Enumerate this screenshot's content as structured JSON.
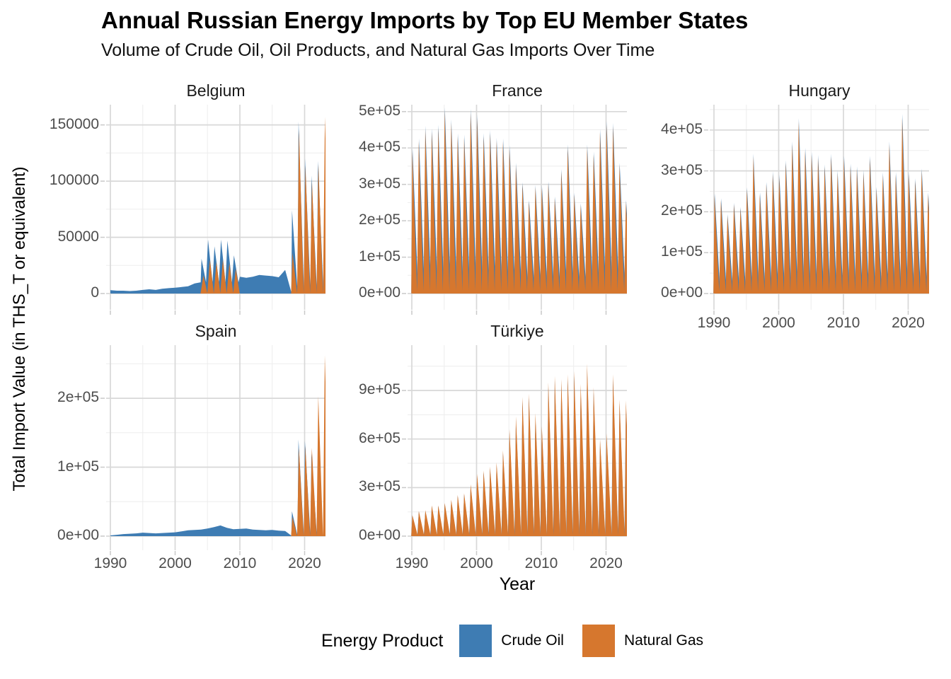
{
  "colors": {
    "crude_oil": "#3E7CB3",
    "natural_gas": "#D6772E",
    "grid_major": "#d8d8d8",
    "grid_minor": "#ededed",
    "tick_mark": "#c9c9c9",
    "axis_text": "#4d4d4d"
  },
  "chart_data": {
    "type": "area",
    "title": "Annual Russian Energy Imports by Top EU Member States",
    "subtitle": "Volume of Crude Oil, Oil Products, and Natural Gas Imports Over Time",
    "xlabel": "Year",
    "ylabel": "Total Import Value (in THS_T or equivalent)",
    "legend": {
      "title": "Energy Product",
      "position": "bottom",
      "entries": [
        {
          "label": "Crude Oil",
          "color": "#3E7CB3"
        },
        {
          "label": "Natural Gas",
          "color": "#D6772E"
        }
      ]
    },
    "grid": "major and minor, light gray on white",
    "years": [
      1990,
      1991,
      1992,
      1993,
      1994,
      1995,
      1996,
      1997,
      1998,
      1999,
      2000,
      2001,
      2002,
      2003,
      2004,
      2005,
      2006,
      2007,
      2008,
      2009,
      2010,
      2011,
      2012,
      2013,
      2014,
      2015,
      2016,
      2017,
      2018,
      2019,
      2020,
      2021,
      2022,
      2023
    ],
    "xlim": [
      1989.34,
      2023.23
    ],
    "x_major_ticks": [
      1990,
      2000,
      2010,
      2020
    ],
    "x_minor_ticks": [
      1995,
      2005,
      2015
    ],
    "facets": [
      {
        "name": "Belgium",
        "show_x_labels": false,
        "ylim": [
          -14472,
          168000
        ],
        "yticks": [
          {
            "value": 0,
            "label": "0"
          },
          {
            "value": 50000,
            "label": "50000"
          },
          {
            "value": 100000,
            "label": "100000"
          },
          {
            "value": 150000,
            "label": "150000"
          }
        ],
        "y_minor": [
          25000,
          75000,
          125000
        ],
        "series": {
          "crude_oil": [
            3000,
            2500,
            2500,
            2200,
            2500,
            3200,
            3800,
            3200,
            4200,
            4800,
            5200,
            5800,
            6500,
            9000,
            31000,
            48000,
            42000,
            48000,
            47000,
            34000,
            15000,
            14000,
            15000,
            16500,
            16000,
            15500,
            14500,
            21000,
            74000,
            153000,
            120000,
            105000,
            118000,
            10000
          ],
          "natural_gas": [
            0,
            0,
            0,
            0,
            0,
            0,
            0,
            0,
            0,
            0,
            0,
            0,
            0,
            0,
            16000,
            30000,
            28000,
            30000,
            27000,
            22000,
            0,
            0,
            0,
            0,
            0,
            0,
            0,
            0,
            36000,
            146000,
            114000,
            100000,
            115000,
            157000
          ]
        },
        "render": {
          "crude_oil": [
            {
              "style": "smooth",
              "from": 1990,
              "to": 2003
            },
            {
              "style": "spike",
              "from": 2004,
              "to": 2009,
              "base": 10000,
              "peakdx": 0.08,
              "falldx": 0.78
            },
            {
              "style": "smooth",
              "from": 2010,
              "to": 2017
            },
            {
              "style": "spike",
              "from": 2018,
              "to": 2023,
              "base": 1200,
              "peakdx": 0.06,
              "falldx": 0.92
            }
          ],
          "natural_gas": [
            {
              "style": "spike",
              "from": 2004,
              "to": 2009,
              "base": 300,
              "peakdx": 0.38,
              "falldx": 0.97
            },
            {
              "style": "spike",
              "from": 2018,
              "to": 2023,
              "base": 300,
              "peakdx": 0.14,
              "falldx": 0.85
            }
          ]
        }
      },
      {
        "name": "France",
        "show_x_labels": false,
        "ylim": [
          -44708,
          519000
        ],
        "yticks": [
          {
            "value": 0,
            "label": "0e+00"
          },
          {
            "value": 100000,
            "label": "1e+05"
          },
          {
            "value": 200000,
            "label": "2e+05"
          },
          {
            "value": 300000,
            "label": "3e+05"
          },
          {
            "value": 400000,
            "label": "4e+05"
          },
          {
            "value": 500000,
            "label": "5e+05"
          }
        ],
        "y_minor": [
          50000,
          150000,
          250000,
          350000,
          450000
        ],
        "series": {
          "crude_oil": [
            398000,
            426000,
            461000,
            454000,
            464000,
            512000,
            479000,
            441000,
            437000,
            508000,
            492000,
            441000,
            449000,
            428000,
            426000,
            408000,
            359000,
            306000,
            257000,
            298000,
            296000,
            308000,
            267000,
            342000,
            410000,
            277000,
            248000,
            410000,
            390000,
            452000,
            474000,
            469000,
            359000,
            257000
          ],
          "natural_gas": [
            390000,
            418000,
            452000,
            445000,
            455000,
            502000,
            470000,
            432000,
            428000,
            498000,
            482000,
            432000,
            440000,
            420000,
            418000,
            400000,
            352000,
            300000,
            252000,
            292000,
            290000,
            302000,
            262000,
            335000,
            402000,
            272000,
            243000,
            402000,
            382000,
            443000,
            465000,
            460000,
            352000,
            252000
          ]
        },
        "render": {
          "crude_oil": [
            {
              "style": "spike",
              "from": 1990,
              "to": 2023,
              "base": 9000,
              "peakdx": 0.1,
              "falldx": 0.97
            }
          ],
          "natural_gas": [
            {
              "style": "spike",
              "from": 1990,
              "to": 2023,
              "base": 8000,
              "peakdx": 0.07,
              "falldx": 0.8
            }
          ]
        }
      },
      {
        "name": "Hungary",
        "show_x_labels": true,
        "ylim": [
          -39797,
          462000
        ],
        "yticks": [
          {
            "value": 0,
            "label": "0e+00"
          },
          {
            "value": 100000,
            "label": "1e+05"
          },
          {
            "value": 200000,
            "label": "2e+05"
          },
          {
            "value": 300000,
            "label": "3e+05"
          },
          {
            "value": 400000,
            "label": "4e+05"
          }
        ],
        "y_minor": [
          50000,
          150000,
          250000,
          350000,
          450000
        ],
        "series": {
          "crude_oil": [
            245000,
            233000,
            194000,
            222000,
            212000,
            260000,
            342000,
            248000,
            273000,
            299000,
            291000,
            326000,
            372000,
            429000,
            357000,
            347000,
            339000,
            316000,
            342000,
            301000,
            337000,
            318000,
            311000,
            302000,
            337000,
            261000,
            296000,
            372000,
            297000,
            439000,
            297000,
            282000,
            306000,
            247000
          ],
          "natural_gas": [
            240000,
            228000,
            190000,
            218000,
            208000,
            255000,
            335000,
            243000,
            268000,
            293000,
            285000,
            320000,
            365000,
            421000,
            350000,
            340000,
            332000,
            310000,
            335000,
            295000,
            330000,
            312000,
            305000,
            296000,
            330000,
            256000,
            290000,
            365000,
            291000,
            430000,
            291000,
            276000,
            300000,
            242000
          ]
        },
        "render": {
          "crude_oil": [
            {
              "style": "spike",
              "from": 1990,
              "to": 2023,
              "base": 6000,
              "peakdx": 0.1,
              "falldx": 0.95
            }
          ],
          "natural_gas": [
            {
              "style": "spike",
              "from": 1990,
              "to": 2023,
              "base": 5000,
              "peakdx": 0.07,
              "falldx": 0.8
            }
          ]
        }
      },
      {
        "name": "Spain",
        "show_x_labels": true,
        "ylim": [
          -20519,
          277000
        ],
        "yticks": [
          {
            "value": 0,
            "label": "0e+00"
          },
          {
            "value": 100000,
            "label": "1e+05"
          },
          {
            "value": 200000,
            "label": "2e+05"
          }
        ],
        "y_minor": [
          50000,
          150000,
          250000
        ],
        "series": {
          "crude_oil": [
            1000,
            2000,
            3000,
            3500,
            4000,
            5000,
            4500,
            4000,
            4500,
            5000,
            5500,
            7000,
            8500,
            9000,
            9500,
            11000,
            13000,
            15500,
            12000,
            10000,
            10500,
            11000,
            9500,
            9000,
            8500,
            9000,
            8000,
            7500,
            36000,
            140000,
            138000,
            120000,
            15000,
            10000
          ],
          "natural_gas": [
            0,
            0,
            0,
            0,
            0,
            0,
            0,
            0,
            0,
            0,
            0,
            0,
            0,
            0,
            0,
            0,
            0,
            0,
            0,
            0,
            0,
            0,
            0,
            0,
            0,
            0,
            0,
            0,
            28000,
            129000,
            131000,
            128000,
            203000,
            262000
          ]
        },
        "render": {
          "crude_oil": [
            {
              "style": "smooth",
              "from": 1990,
              "to": 2017
            },
            {
              "style": "spike",
              "from": 2018,
              "to": 2023,
              "base": 800,
              "peakdx": 0.05,
              "falldx": 0.9
            }
          ],
          "natural_gas": [
            {
              "style": "spike",
              "from": 2018,
              "to": 2023,
              "base": 300,
              "peakdx": 0.12,
              "falldx": 0.85
            }
          ]
        }
      },
      {
        "name": "Türkiye",
        "show_x_labels": true,
        "ylim": [
          -87407,
          1180000
        ],
        "yticks": [
          {
            "value": 0,
            "label": "0e+00"
          },
          {
            "value": 300000,
            "label": "3e+05"
          },
          {
            "value": 600000,
            "label": "6e+05"
          },
          {
            "value": 900000,
            "label": "9e+05"
          }
        ],
        "y_minor": [
          150000,
          450000,
          750000,
          1050000
        ],
        "series": {
          "crude_oil": [
            126000,
            150000,
            155000,
            184000,
            184000,
            199000,
            218000,
            247000,
            257000,
            310000,
            373000,
            393000,
            417000,
            441000,
            514000,
            640000,
            718000,
            834000,
            854000,
            737000,
            660000,
            921000,
            960000,
            941000,
            970000,
            989000,
            912000,
            1033000,
            892000,
            582000,
            616000,
            970000,
            820000,
            813000
          ],
          "natural_gas": [
            130000,
            155000,
            160000,
            190000,
            190000,
            205000,
            225000,
            255000,
            265000,
            320000,
            385000,
            405000,
            430000,
            455000,
            530000,
            660000,
            740000,
            860000,
            880000,
            760000,
            680000,
            950000,
            990000,
            970000,
            1000000,
            1020000,
            940000,
            1065000,
            920000,
            600000,
            635000,
            1000000,
            845000,
            838000
          ]
        },
        "render": {
          "crude_oil": [
            {
              "style": "spike",
              "from": 1990,
              "to": 2023,
              "base": 8000,
              "peakdx": 0.08,
              "falldx": 0.85
            }
          ],
          "natural_gas": [
            {
              "style": "spike",
              "from": 1990,
              "to": 2023,
              "base": 8000,
              "peakdx": 0.08,
              "falldx": 0.88
            }
          ]
        }
      }
    ]
  }
}
